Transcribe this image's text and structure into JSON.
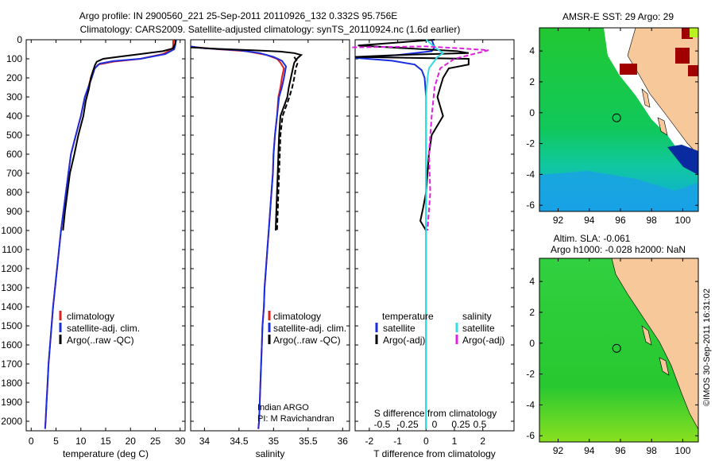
{
  "title": {
    "line1": "Argo profile: IN 2900560_221 25-Sep-2011 20110926_132 0.332S 95.756E",
    "line2": "Climatology: CARS2009. Satellite-adjusted climatology: synTS_20110924.nc (1.6d earlier)"
  },
  "depth_ticks": [
    0,
    100,
    200,
    300,
    400,
    500,
    600,
    700,
    800,
    900,
    1000,
    1100,
    1200,
    1300,
    1400,
    1500,
    1600,
    1700,
    1800,
    1900,
    2000
  ],
  "colors": {
    "clim": "#e0201a",
    "sat": "#1a2ee0",
    "argo": "#000000",
    "sat_s": "#33dde0",
    "argo_s": "#e020e0",
    "land": "#f7c89a",
    "dark_red": "#a00000"
  },
  "chart_data": [
    {
      "type": "line",
      "id": "temperature",
      "xlabel": "temperature (deg C)",
      "xlim": [
        -1,
        31
      ],
      "ylim": [
        0,
        2050
      ],
      "xticks": [
        0,
        5,
        10,
        15,
        20,
        25,
        30
      ],
      "tick_labels": [
        "0",
        "5",
        "10",
        "15",
        "20",
        "25",
        "30"
      ],
      "legend_labels": [
        "climatology",
        "satellite-adj. clim.",
        "Argo(..raw -QC)"
      ],
      "series": [
        {
          "name": "climatology",
          "color": "#e0201a",
          "dash": "",
          "data": [
            [
              28.6,
              0
            ],
            [
              28.6,
              30
            ],
            [
              28.4,
              50
            ],
            [
              26.5,
              75
            ],
            [
              22,
              100
            ],
            [
              16.5,
              115
            ],
            [
              13.5,
              130
            ],
            [
              12.5,
              160
            ],
            [
              12,
              200
            ],
            [
              11.5,
              250
            ],
            [
              10.8,
              300
            ],
            [
              10,
              400
            ],
            [
              9,
              500
            ],
            [
              8,
              600
            ],
            [
              7.5,
              700
            ],
            [
              7,
              800
            ],
            [
              6.5,
              900
            ],
            [
              6,
              1000
            ],
            [
              5.6,
              1100
            ],
            [
              5.2,
              1200
            ],
            [
              4.8,
              1300
            ],
            [
              4.4,
              1400
            ],
            [
              4.1,
              1500
            ],
            [
              3.8,
              1600
            ],
            [
              3.5,
              1700
            ],
            [
              3.3,
              1800
            ],
            [
              3.1,
              1900
            ],
            [
              2.9,
              2000
            ],
            [
              2.8,
              2040
            ]
          ]
        },
        {
          "name": "satellite",
          "color": "#1a2ee0",
          "dash": "",
          "data": [
            [
              29.2,
              0
            ],
            [
              29,
              30
            ],
            [
              28.8,
              50
            ],
            [
              27,
              75
            ],
            [
              22,
              100
            ],
            [
              16.5,
              112
            ],
            [
              13.8,
              125
            ],
            [
              12.8,
              150
            ],
            [
              12.2,
              200
            ],
            [
              11.5,
              250
            ],
            [
              10.8,
              300
            ],
            [
              10,
              400
            ],
            [
              9,
              500
            ],
            [
              8,
              600
            ],
            [
              7.5,
              700
            ],
            [
              7,
              800
            ],
            [
              6.5,
              900
            ],
            [
              6,
              1000
            ],
            [
              5.6,
              1100
            ],
            [
              5.2,
              1200
            ],
            [
              4.8,
              1300
            ],
            [
              4.4,
              1400
            ],
            [
              4.1,
              1500
            ],
            [
              3.8,
              1600
            ],
            [
              3.5,
              1700
            ],
            [
              3.3,
              1800
            ],
            [
              3.1,
              1900
            ],
            [
              2.9,
              2000
            ],
            [
              2.8,
              2040
            ]
          ]
        },
        {
          "name": "Argo",
          "color": "#000000",
          "dash": "",
          "data": [
            [
              29,
              0
            ],
            [
              29,
              20
            ],
            [
              28.6,
              45
            ],
            [
              26.5,
              60
            ],
            [
              22,
              75
            ],
            [
              18,
              88
            ],
            [
              14.5,
              100
            ],
            [
              13.2,
              115
            ],
            [
              12.8,
              135
            ],
            [
              12.5,
              160
            ],
            [
              12,
              200
            ],
            [
              11.6,
              260
            ],
            [
              11,
              320
            ],
            [
              10.5,
              400
            ],
            [
              9.5,
              500
            ],
            [
              8.7,
              600
            ],
            [
              7.8,
              700
            ],
            [
              7.3,
              800
            ],
            [
              6.8,
              900
            ],
            [
              6.4,
              1000
            ]
          ]
        }
      ]
    },
    {
      "type": "line",
      "id": "salinity",
      "xlabel": "salinity",
      "xlim": [
        33.8,
        36.1
      ],
      "ylim": [
        0,
        2050
      ],
      "xticks": [
        34,
        34.5,
        35,
        35.5,
        36
      ],
      "tick_labels": [
        "34",
        "34.5",
        "35",
        "35.5",
        "36"
      ],
      "legend_labels": [
        "climatology",
        "satellite-adj. clim.",
        "Argo(..raw -QC)"
      ],
      "annotation": [
        "Indian ARGO",
        "PI: M Ravichandran"
      ],
      "series": [
        {
          "name": "climatology",
          "color": "#e0201a",
          "dash": "",
          "data": [
            [
              33.9,
              40
            ],
            [
              34.2,
              50
            ],
            [
              34.6,
              60
            ],
            [
              34.9,
              80
            ],
            [
              35.05,
              100
            ],
            [
              35.1,
              120
            ],
            [
              35.15,
              150
            ],
            [
              35.12,
              200
            ],
            [
              35.1,
              250
            ],
            [
              35.07,
              300
            ],
            [
              35.05,
              400
            ],
            [
              35.02,
              500
            ],
            [
              35,
              600
            ],
            [
              34.99,
              700
            ],
            [
              34.97,
              800
            ],
            [
              34.95,
              900
            ],
            [
              34.93,
              1000
            ],
            [
              34.91,
              1100
            ],
            [
              34.89,
              1200
            ],
            [
              34.87,
              1300
            ],
            [
              34.86,
              1400
            ],
            [
              34.84,
              1500
            ],
            [
              34.83,
              1600
            ],
            [
              34.82,
              1700
            ],
            [
              34.81,
              1800
            ],
            [
              34.8,
              1900
            ],
            [
              34.79,
              2000
            ],
            [
              34.78,
              2040
            ]
          ]
        },
        {
          "name": "satellite",
          "color": "#1a2ee0",
          "dash": "",
          "data": [
            [
              33.8,
              35
            ],
            [
              34,
              45
            ],
            [
              34.5,
              55
            ],
            [
              34.8,
              70
            ],
            [
              35,
              90
            ],
            [
              35.12,
              110
            ],
            [
              35.18,
              140
            ],
            [
              35.15,
              200
            ],
            [
              35.12,
              250
            ],
            [
              35.08,
              300
            ],
            [
              35.05,
              400
            ],
            [
              35.02,
              500
            ],
            [
              35,
              600
            ],
            [
              34.99,
              700
            ],
            [
              34.97,
              800
            ],
            [
              34.95,
              900
            ],
            [
              34.93,
              1000
            ],
            [
              34.91,
              1100
            ],
            [
              34.89,
              1200
            ],
            [
              34.87,
              1300
            ],
            [
              34.86,
              1400
            ],
            [
              34.84,
              1500
            ],
            [
              34.83,
              1600
            ],
            [
              34.82,
              1700
            ],
            [
              34.81,
              1800
            ],
            [
              34.8,
              1900
            ],
            [
              34.79,
              2000
            ],
            [
              34.78,
              2040
            ]
          ]
        },
        {
          "name": "Argo",
          "color": "#000000",
          "dash": "",
          "data": [
            [
              33.8,
              40
            ],
            [
              34.2,
              48
            ],
            [
              34.7,
              55
            ],
            [
              35.1,
              62
            ],
            [
              35.3,
              70
            ],
            [
              35.4,
              80
            ],
            [
              35.35,
              95
            ],
            [
              35.3,
              120
            ],
            [
              35.28,
              150
            ],
            [
              35.25,
              200
            ],
            [
              35.22,
              250
            ],
            [
              35.2,
              300
            ],
            [
              35.15,
              350
            ],
            [
              35.1,
              400
            ],
            [
              35.08,
              500
            ],
            [
              35.07,
              600
            ],
            [
              35.06,
              700
            ],
            [
              35.05,
              800
            ],
            [
              35.04,
              900
            ],
            [
              35.03,
              1000
            ]
          ]
        },
        {
          "name": "Argo(-adj)",
          "color": "#000000",
          "dash": "6,3",
          "data": [
            [
              35.3,
              90
            ],
            [
              35.35,
              120
            ],
            [
              35.32,
              150
            ],
            [
              35.3,
              200
            ],
            [
              35.27,
              250
            ],
            [
              35.23,
              300
            ],
            [
              35.18,
              350
            ],
            [
              35.13,
              400
            ],
            [
              35.1,
              500
            ],
            [
              35.09,
              600
            ],
            [
              35.08,
              700
            ],
            [
              35.07,
              800
            ],
            [
              35.06,
              900
            ],
            [
              35.05,
              1000
            ]
          ]
        }
      ]
    },
    {
      "type": "line",
      "id": "difference",
      "xlabel": "T difference from climatology",
      "xlabel_top": "S difference from climatology",
      "xlim": [
        -2.5,
        3.1
      ],
      "ylim": [
        0,
        2050
      ],
      "xticks": [
        -2,
        -1,
        0,
        1,
        2
      ],
      "tick_labels": [
        "-2",
        "-1",
        "0",
        "1",
        "2"
      ],
      "top_tick_labels": [
        "-0.5",
        "-0.25",
        "0",
        "0.25",
        "0.5"
      ],
      "legend": {
        "temperature": "temperature",
        "salinity": "salinity",
        "sat": "satellite",
        "argo": "Argo(-adj)"
      },
      "series": [
        {
          "name": "T satellite",
          "color": "#1a2ee0",
          "dash": "",
          "data": [
            [
              0.2,
              0
            ],
            [
              0.3,
              40
            ],
            [
              0.2,
              60
            ],
            [
              -1,
              80
            ],
            [
              -2.5,
              95
            ],
            [
              -1.2,
              110
            ],
            [
              -0.4,
              130
            ],
            [
              -0.15,
              160
            ],
            [
              -0.05,
              200
            ],
            [
              0,
              300
            ],
            [
              0,
              500
            ],
            [
              0,
              1000
            ],
            [
              0,
              2040
            ]
          ]
        },
        {
          "name": "T Argo",
          "color": "#000000",
          "dash": "",
          "data": [
            [
              0.3,
              0
            ],
            [
              -2.4,
              30
            ],
            [
              1.1,
              60
            ],
            [
              1.5,
              70
            ],
            [
              -1,
              80
            ],
            [
              -2.5,
              90
            ],
            [
              1.5,
              100
            ],
            [
              1.5,
              130
            ],
            [
              0.8,
              150
            ],
            [
              0.6,
              200
            ],
            [
              0.5,
              250
            ],
            [
              0.4,
              300
            ],
            [
              0.6,
              400
            ],
            [
              0.2,
              500
            ],
            [
              0.1,
              600
            ],
            [
              0.05,
              700
            ],
            [
              0,
              800
            ],
            [
              -0.1,
              880
            ],
            [
              -0.2,
              950
            ],
            [
              0,
              1000
            ]
          ]
        },
        {
          "name": "S satellite",
          "color": "#33dde0",
          "dash": "",
          "data": [
            [
              0,
              0
            ],
            [
              0.4,
              50
            ],
            [
              0.6,
              70
            ],
            [
              0.4,
              90
            ],
            [
              0.3,
              110
            ],
            [
              0.1,
              150
            ],
            [
              0.05,
              200
            ],
            [
              0,
              300
            ],
            [
              0,
              600
            ],
            [
              0,
              1000
            ],
            [
              0,
              2040
            ]
          ]
        },
        {
          "name": "S Argo",
          "color": "#e020e0",
          "dash": "6,3",
          "data": [
            [
              -2.6,
              40
            ],
            [
              0,
              35
            ],
            [
              1.2,
              45
            ],
            [
              2.2,
              55
            ],
            [
              1.8,
              70
            ],
            [
              1,
              100
            ],
            [
              0.5,
              150
            ],
            [
              0.3,
              250
            ],
            [
              0.2,
              400
            ],
            [
              0.1,
              600
            ],
            [
              0.15,
              800
            ],
            [
              0.05,
              1000
            ]
          ]
        }
      ]
    }
  ],
  "maps": [
    {
      "id": "sst",
      "title": [
        "AMSR-E SST: 29 Argo: 29"
      ],
      "xticks": [
        92,
        94,
        96,
        98,
        100
      ],
      "yticks": [
        4,
        2,
        0,
        -2,
        -4,
        -6
      ],
      "xlim": [
        90.8,
        101
      ],
      "ylim": [
        -6.4,
        5.5
      ],
      "marker": [
        95.756,
        -0.332
      ]
    },
    {
      "id": "sla",
      "title": [
        "Altim. SLA: -0.061",
        "Argo h1000: -0.028 h2000: NaN"
      ],
      "xticks": [
        92,
        94,
        96,
        98,
        100
      ],
      "yticks": [
        4,
        2,
        0,
        -2,
        -4,
        -6
      ],
      "xlim": [
        90.8,
        101
      ],
      "ylim": [
        -6.4,
        5.5
      ],
      "marker": [
        95.756,
        -0.332
      ]
    }
  ],
  "credit": "©IMOS 30-Sep-2011 16:31:02"
}
